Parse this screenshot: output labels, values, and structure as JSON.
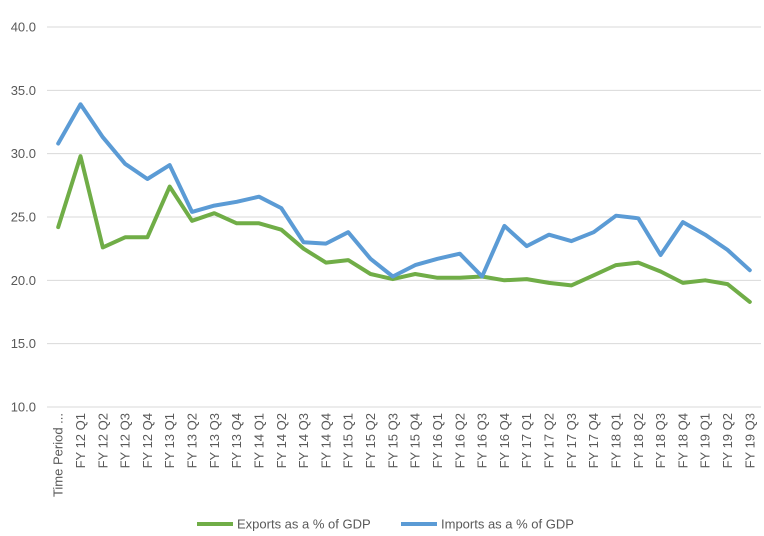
{
  "chart_data": {
    "type": "line",
    "categories": [
      "Time Period ...",
      "FY 12 Q1",
      "FY 12 Q2",
      "FY 12 Q3",
      "FY 12 Q4",
      "FY 13 Q1",
      "FY 13 Q2",
      "FY 13 Q3",
      "FY 13 Q4",
      "FY 14 Q1",
      "FY 14 Q2",
      "FY 14 Q3",
      "FY 14 Q4",
      "FY 15 Q1",
      "FY 15 Q2",
      "FY 15 Q3",
      "FY 15 Q4",
      "FY 16 Q1",
      "FY 16 Q2",
      "FY 16 Q3",
      "FY 16 Q4",
      "FY 17 Q1",
      "FY 17 Q2",
      "FY 17 Q3",
      "FY 17 Q4",
      "FY 18 Q1",
      "FY 18 Q2",
      "FY 18 Q3",
      "FY 18 Q4",
      "FY 19 Q1",
      "FY 19 Q2",
      "FY 19 Q3"
    ],
    "series": [
      {
        "name": "Exports as a % of GDP",
        "color": "#70AD47",
        "values": [
          24.2,
          29.8,
          22.6,
          23.4,
          23.4,
          27.4,
          24.7,
          25.3,
          24.5,
          24.5,
          24.0,
          22.5,
          21.4,
          21.6,
          20.5,
          20.1,
          20.5,
          20.2,
          20.2,
          20.3,
          20.0,
          20.1,
          19.8,
          19.6,
          20.4,
          21.2,
          21.4,
          20.7,
          19.8,
          20.0,
          19.7,
          18.3
        ]
      },
      {
        "name": "Imports as a % of GDP",
        "color": "#5B9BD5",
        "values": [
          30.8,
          33.9,
          31.3,
          29.2,
          28.0,
          29.1,
          25.4,
          25.9,
          26.2,
          26.6,
          25.7,
          23.0,
          22.9,
          23.8,
          21.7,
          20.3,
          21.2,
          21.7,
          22.1,
          20.3,
          24.3,
          22.7,
          23.6,
          23.1,
          23.8,
          25.1,
          24.9,
          22.0,
          24.6,
          23.6,
          22.4,
          20.8
        ]
      }
    ],
    "yticks": [
      "10.0",
      "15.0",
      "20.0",
      "25.0",
      "30.0",
      "35.0",
      "40.0"
    ],
    "ylim": [
      10,
      40
    ],
    "grid": true,
    "legend_position": "bottom"
  }
}
